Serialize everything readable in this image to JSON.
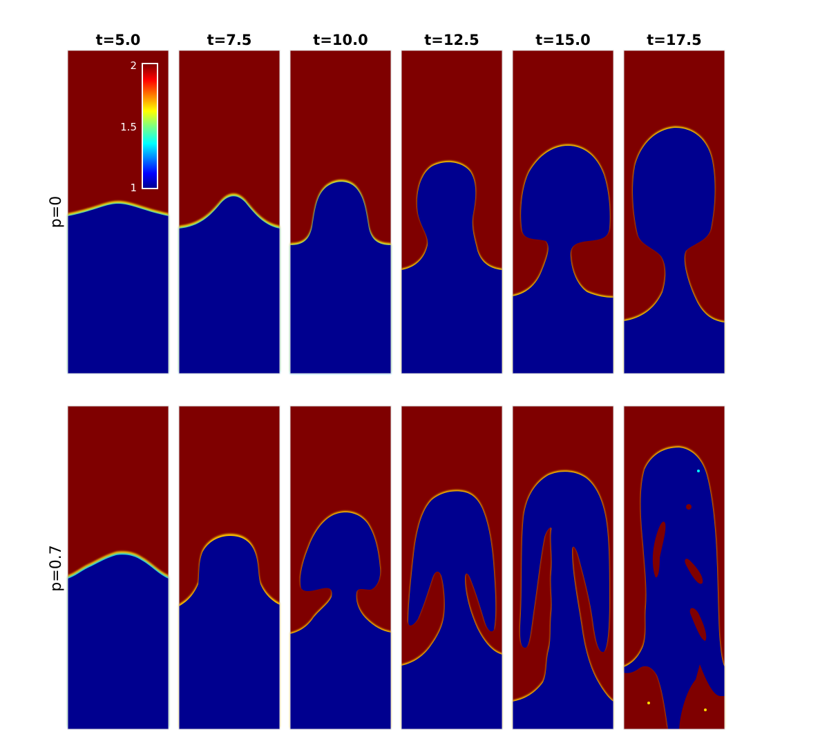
{
  "figure": {
    "column_titles": [
      "t=5.0",
      "t=7.5",
      "t=10.0",
      "t=12.5",
      "t=15.0",
      "t=17.5"
    ],
    "row_labels": [
      "p=0",
      "p=0.7"
    ],
    "colorbar": {
      "ticks": [
        "2",
        "1.5",
        "1"
      ],
      "range": [
        1,
        2
      ],
      "colormap": "jet"
    },
    "colors": {
      "heavy_fluid": "#7f0000",
      "light_fluid": "#00008f",
      "interface_mid": "#00ffff",
      "interface_warm": "#ffd700"
    }
  }
}
